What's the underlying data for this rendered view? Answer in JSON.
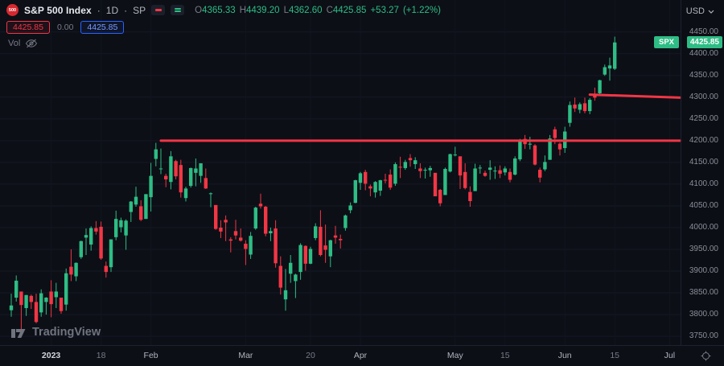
{
  "header": {
    "logo_text": "500",
    "symbol_name": "S&P 500 Index",
    "separator": "·",
    "interval": "1D",
    "exchange": "SP",
    "ohlc": {
      "o_key": "O",
      "o_val": "4365.33",
      "h_key": "H",
      "h_val": "4439.20",
      "l_key": "L",
      "l_val": "4362.60",
      "c_key": "C",
      "c_val": "4425.85",
      "change": "+53.27",
      "change_pct": "(+1.22%)"
    },
    "currency_label": "USD"
  },
  "price_row": {
    "red_value": "4425.85",
    "zero_value": "0.00",
    "blue_value": "4425.85"
  },
  "indicator_row": {
    "volume_label": "Vol"
  },
  "chart_overlay": {
    "symbol_badge": "SPX"
  },
  "price_scale": {
    "labels": [
      "4450.00",
      "4400.00",
      "4350.00",
      "4300.00",
      "4250.00",
      "4200.00",
      "4150.00",
      "4100.00",
      "4050.00",
      "4000.00",
      "3950.00",
      "3900.00",
      "3850.00",
      "3800.00",
      "3750.00"
    ],
    "current_price": "4425.85"
  },
  "time_axis": {
    "labels": [
      {
        "text": "2023",
        "bar": 8,
        "kind": "year"
      },
      {
        "text": "18",
        "bar": 18,
        "kind": "day"
      },
      {
        "text": "Feb",
        "bar": 28,
        "kind": "month"
      },
      {
        "text": "Mar",
        "bar": 47,
        "kind": "month"
      },
      {
        "text": "20",
        "bar": 60,
        "kind": "day"
      },
      {
        "text": "Apr",
        "bar": 70,
        "kind": "month"
      },
      {
        "text": "May",
        "bar": 89,
        "kind": "month"
      },
      {
        "text": "15",
        "bar": 99,
        "kind": "day"
      },
      {
        "text": "Jun",
        "bar": 111,
        "kind": "month"
      },
      {
        "text": "15",
        "bar": 121,
        "kind": "day"
      },
      {
        "text": "Jul",
        "bar": 132,
        "kind": "month"
      }
    ]
  },
  "footer": {
    "brand": "TradingView"
  },
  "colors": {
    "background": "#0c0f16",
    "up": "#2ebd85",
    "down": "#f23645",
    "accent_red": "#f23645",
    "accent_blue": "#2962ff",
    "scale_text": "#8b8e99",
    "grid": "#151926"
  },
  "chart_data": {
    "type": "candlestick",
    "title": "S&P 500 Index · 1D · SP",
    "x_range": "Dec 20 2022 – Jun 15 2023 (daily bars)",
    "ylim": [
      3728,
      4468
    ],
    "up_color": "#2ebd85",
    "down_color": "#f23645",
    "current_price": 4425.85,
    "last_bar_ohlc": {
      "open": 4365.33,
      "high": 4439.2,
      "low": 4362.6,
      "close": 4425.85,
      "change": 53.27,
      "change_pct": 1.22
    },
    "candles": [
      [
        3810,
        3848,
        3795,
        3821
      ],
      [
        3839,
        3890,
        3830,
        3878
      ],
      [
        3853,
        3853,
        3764,
        3822
      ],
      [
        3815,
        3845,
        3797,
        3845
      ],
      [
        3843,
        3846,
        3813,
        3829
      ],
      [
        3829,
        3848,
        3780,
        3783
      ],
      [
        3805,
        3858,
        3795,
        3849
      ],
      [
        3829,
        3840,
        3800,
        3839
      ],
      [
        3853,
        3879,
        3794,
        3824
      ],
      [
        3840,
        3873,
        3815,
        3853
      ],
      [
        3839,
        3839,
        3802,
        3808
      ],
      [
        3823,
        3906,
        3809,
        3895
      ],
      [
        3910,
        3950,
        3877,
        3892
      ],
      [
        3888,
        3920,
        3877,
        3919
      ],
      [
        3932,
        3970,
        3928,
        3969
      ],
      [
        3977,
        3998,
        3937,
        3983
      ],
      [
        3961,
        4003,
        3947,
        3999
      ],
      [
        3999,
        4015,
        3984,
        3991
      ],
      [
        4002,
        4014,
        3926,
        3929
      ],
      [
        3912,
        3922,
        3885,
        3898
      ],
      [
        3909,
        3973,
        3898,
        3973
      ],
      [
        3978,
        4039,
        3971,
        4020
      ],
      [
        4001,
        4023,
        3989,
        4017
      ],
      [
        3982,
        4019,
        3949,
        4016
      ],
      [
        4036,
        4061,
        4013,
        4060
      ],
      [
        4053,
        4094,
        4048,
        4071
      ],
      [
        4049,
        4063,
        4015,
        4018
      ],
      [
        4020,
        4077,
        4020,
        4077
      ],
      [
        4070,
        4149,
        4037,
        4119
      ],
      [
        4158,
        4195,
        4141,
        4180
      ],
      [
        4136,
        4182,
        4123,
        4136
      ],
      [
        4119,
        4124,
        4093,
        4111
      ],
      [
        4105,
        4176,
        4088,
        4164
      ],
      [
        4153,
        4156,
        4111,
        4118
      ],
      [
        4144,
        4156,
        4069,
        4081
      ],
      [
        4068,
        4094,
        4060,
        4090
      ],
      [
        4096,
        4138,
        4092,
        4137
      ],
      [
        4126,
        4159,
        4095,
        4136
      ],
      [
        4119,
        4148,
        4103,
        4148
      ],
      [
        4114,
        4136,
        4089,
        4090
      ],
      [
        4077,
        4081,
        4047,
        4079
      ],
      [
        4052,
        4052,
        3995,
        3997
      ],
      [
        4000,
        4017,
        3976,
        3991
      ],
      [
        4018,
        4028,
        3969,
        4012
      ],
      [
        3973,
        3978,
        3943,
        3970
      ],
      [
        3992,
        4018,
        3973,
        3982
      ],
      [
        3977,
        3998,
        3968,
        3970
      ],
      [
        3963,
        3971,
        3914,
        3951
      ],
      [
        3938,
        3990,
        3928,
        3981
      ],
      [
        3998,
        4048,
        3995,
        4046
      ],
      [
        4055,
        4078,
        4044,
        4049
      ],
      [
        4048,
        4050,
        3980,
        3986
      ],
      [
        3987,
        4000,
        3969,
        3992
      ],
      [
        3998,
        4017,
        3908,
        3918
      ],
      [
        3912,
        3934,
        3846,
        3862
      ],
      [
        3835,
        3905,
        3809,
        3856
      ],
      [
        3894,
        3937,
        3873,
        3919
      ],
      [
        3877,
        3894,
        3838,
        3892
      ],
      [
        3898,
        3964,
        3880,
        3960
      ],
      [
        3958,
        3959,
        3901,
        3917
      ],
      [
        3917,
        3956,
        3916,
        3951
      ],
      [
        3976,
        4010,
        3971,
        4003
      ],
      [
        4002,
        4040,
        3934,
        3937
      ],
      [
        3959,
        4007,
        3919,
        3949
      ],
      [
        3934,
        3972,
        3909,
        3971
      ],
      [
        3982,
        4004,
        3963,
        3977
      ],
      [
        3974,
        3984,
        3952,
        3971
      ],
      [
        3999,
        4030,
        3993,
        4028
      ],
      [
        4040,
        4058,
        4033,
        4051
      ],
      [
        4057,
        4110,
        4056,
        4109
      ],
      [
        4103,
        4128,
        4087,
        4125
      ],
      [
        4128,
        4133,
        4086,
        4101
      ],
      [
        4095,
        4099,
        4072,
        4090
      ],
      [
        4081,
        4107,
        4069,
        4105
      ],
      [
        4085,
        4110,
        4073,
        4109
      ],
      [
        4110,
        4124,
        4102,
        4109
      ],
      [
        4122,
        4134,
        4087,
        4092
      ],
      [
        4101,
        4150,
        4096,
        4146
      ],
      [
        4140,
        4163,
        4114,
        4138
      ],
      [
        4137,
        4156,
        4133,
        4151
      ],
      [
        4160,
        4169,
        4140,
        4155
      ],
      [
        4146,
        4162,
        4135,
        4155
      ],
      [
        4136,
        4148,
        4114,
        4130
      ],
      [
        4132,
        4138,
        4113,
        4133
      ],
      [
        4132,
        4142,
        4117,
        4137
      ],
      [
        4126,
        4126,
        4072,
        4072
      ],
      [
        4087,
        4089,
        4049,
        4056
      ],
      [
        4075,
        4138,
        4075,
        4135
      ],
      [
        4129,
        4170,
        4127,
        4169
      ],
      [
        4167,
        4186,
        4164,
        4168
      ],
      [
        4164,
        4164,
        4089,
        4120
      ],
      [
        4128,
        4148,
        4088,
        4091
      ],
      [
        4082,
        4095,
        4048,
        4061
      ],
      [
        4084,
        4147,
        4084,
        4136
      ],
      [
        4137,
        4144,
        4124,
        4138
      ],
      [
        4126,
        4131,
        4117,
        4119
      ],
      [
        4133,
        4155,
        4110,
        4138
      ],
      [
        4130,
        4141,
        4112,
        4131
      ],
      [
        4132,
        4143,
        4114,
        4124
      ],
      [
        4127,
        4141,
        4120,
        4136
      ],
      [
        4128,
        4136,
        4104,
        4110
      ],
      [
        4122,
        4164,
        4120,
        4159
      ],
      [
        4157,
        4204,
        4153,
        4198
      ],
      [
        4204,
        4213,
        4181,
        4192
      ],
      [
        4191,
        4209,
        4180,
        4193
      ],
      [
        4189,
        4192,
        4143,
        4145
      ],
      [
        4133,
        4138,
        4104,
        4115
      ],
      [
        4134,
        4166,
        4130,
        4151
      ],
      [
        4156,
        4213,
        4156,
        4205
      ],
      [
        4226,
        4232,
        4192,
        4206
      ],
      [
        4193,
        4196,
        4166,
        4180
      ],
      [
        4183,
        4232,
        4172,
        4221
      ],
      [
        4241,
        4290,
        4232,
        4282
      ],
      [
        4283,
        4299,
        4266,
        4274
      ],
      [
        4271,
        4288,
        4263,
        4284
      ],
      [
        4286,
        4299,
        4263,
        4268
      ],
      [
        4268,
        4298,
        4261,
        4294
      ],
      [
        4304,
        4322,
        4292,
        4299
      ],
      [
        4309,
        4340,
        4304,
        4339
      ],
      [
        4352,
        4375,
        4349,
        4369
      ],
      [
        4366,
        4391,
        4338,
        4373
      ],
      [
        4365.33,
        4439.2,
        4362.6,
        4425.85
      ]
    ],
    "drawings": [
      {
        "type": "horizontal-ray",
        "price_start": 4200,
        "price_end": 4200,
        "start_bar": 30,
        "color": "#f23645",
        "width": 3
      },
      {
        "type": "horizontal-ray",
        "price_start": 4306,
        "price_end": 4299,
        "start_bar": 116,
        "color": "#f23645",
        "width": 3
      }
    ]
  }
}
